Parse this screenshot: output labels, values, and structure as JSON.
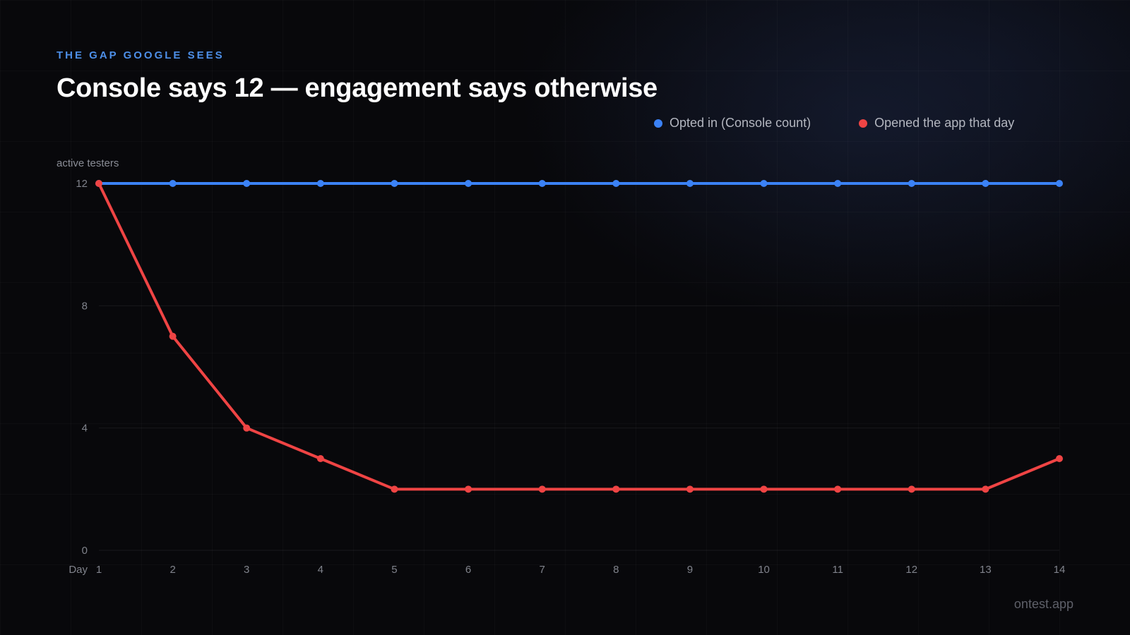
{
  "header": {
    "eyebrow": "THE GAP GOOGLE SEES",
    "title": "Console says 12 — engagement says otherwise"
  },
  "footer": {
    "watermark": "ontest.app"
  },
  "colors": {
    "opted_in": "#3b82f6",
    "opened": "#ef4444",
    "eyebrow": "#4d8fe8"
  },
  "chart_data": {
    "type": "line",
    "title": "Console says 12 — engagement says otherwise",
    "ylabel": "active testers",
    "xlabel": "Day",
    "x": [
      1,
      2,
      3,
      4,
      5,
      6,
      7,
      8,
      9,
      10,
      11,
      12,
      13,
      14
    ],
    "ylim": [
      0,
      12
    ],
    "yticks": [
      0,
      4,
      8,
      12
    ],
    "grid": true,
    "legend_position": "top-right",
    "series": [
      {
        "name": "Opted in (Console count)",
        "color": "#3b82f6",
        "values": [
          12,
          12,
          12,
          12,
          12,
          12,
          12,
          12,
          12,
          12,
          12,
          12,
          12,
          12
        ]
      },
      {
        "name": "Opened the app that day",
        "color": "#ef4444",
        "values": [
          12,
          7,
          4,
          3,
          2,
          2,
          2,
          2,
          2,
          2,
          2,
          2,
          2,
          3
        ]
      }
    ]
  }
}
